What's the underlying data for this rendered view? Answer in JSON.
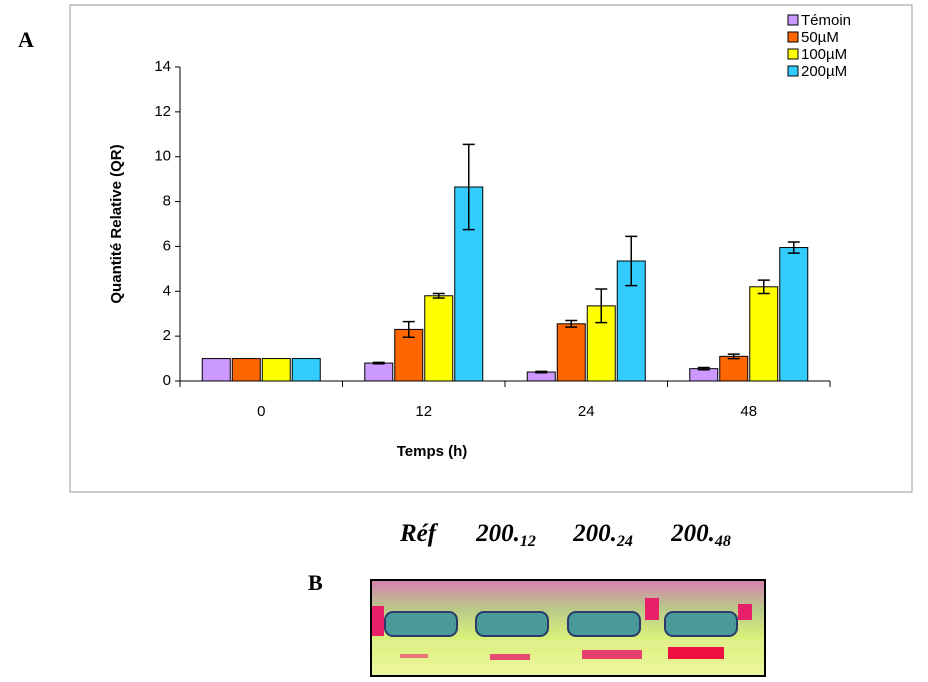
{
  "panel_label": "A",
  "chart_data": {
    "type": "bar",
    "x_label": "Temps (h)",
    "y_label": "Quantité Relative (QR)",
    "categories": [
      "0",
      "12",
      "24",
      "48"
    ],
    "series": [
      {
        "name": "Témoin",
        "color": "#cc99ff",
        "values": [
          1,
          0.8,
          0.4,
          0.55
        ],
        "errors": [
          0,
          0.03,
          0.03,
          0.05
        ]
      },
      {
        "name": "50µM",
        "color": "#ff6600",
        "values": [
          1,
          2.3,
          2.55,
          1.1
        ],
        "errors": [
          0,
          0.35,
          0.15,
          0.1
        ]
      },
      {
        "name": "100µM",
        "color": "#ffff00",
        "values": [
          1,
          3.8,
          3.35,
          4.2
        ],
        "errors": [
          0,
          0.1,
          0.75,
          0.3
        ]
      },
      {
        "name": "200µM",
        "color": "#33ccff",
        "values": [
          1,
          8.65,
          5.35,
          5.95
        ],
        "errors": [
          0,
          1.9,
          1.1,
          0.25
        ]
      }
    ],
    "ylim": [
      0,
      14
    ],
    "yticks": [
      0,
      2,
      4,
      6,
      8,
      10,
      12,
      14
    ],
    "grid": false,
    "legend": "top-right"
  },
  "gel": {
    "panel_label": "B",
    "lanes": [
      {
        "main": "Réf"
      },
      {
        "main": "200.",
        "sub": "12"
      },
      {
        "main": "200.",
        "sub": "24"
      },
      {
        "main": "200.",
        "sub": "48"
      }
    ]
  }
}
